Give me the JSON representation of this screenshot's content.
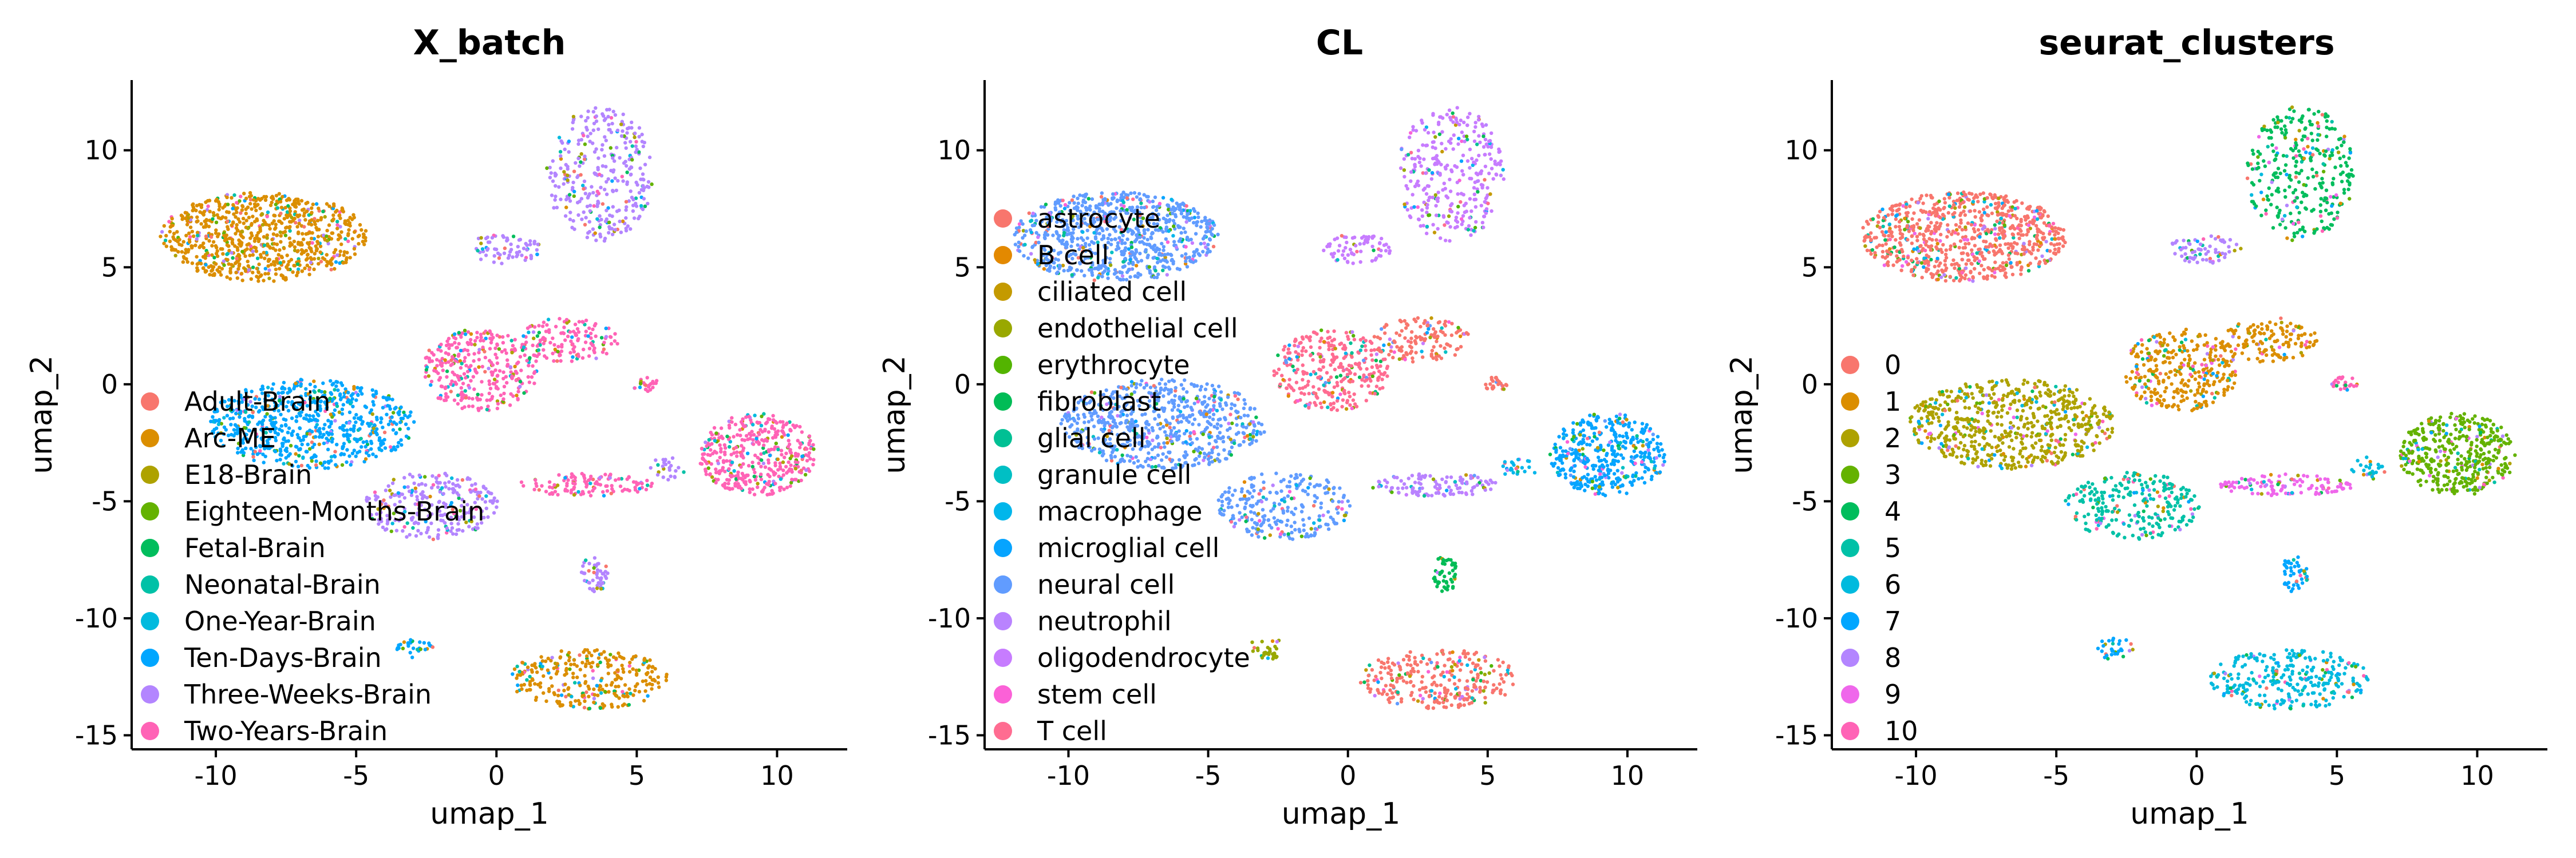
{
  "chart_data": [
    {
      "type": "scatter",
      "title": "X_batch",
      "xlabel": "umap_1",
      "ylabel": "umap_2",
      "xticks": [
        -10,
        -5,
        0,
        5,
        10
      ],
      "yticks": [
        -15,
        -10,
        -5,
        0,
        5,
        10
      ],
      "xlim": [
        -13,
        12.5
      ],
      "ylim": [
        -15.6,
        13
      ],
      "legend_position": "lower-left",
      "series": [
        {
          "name": "Adult-Brain",
          "color": "#F8766D"
        },
        {
          "name": "Arc-ME",
          "color": "#DB8E00"
        },
        {
          "name": "E18-Brain",
          "color": "#AEA200"
        },
        {
          "name": "Eighteen-Months-Brain",
          "color": "#64B200"
        },
        {
          "name": "Fetal-Brain",
          "color": "#00BD5C"
        },
        {
          "name": "Neonatal-Brain",
          "color": "#00C1A7"
        },
        {
          "name": "One-Year-Brain",
          "color": "#00BADE"
        },
        {
          "name": "Ten-Days-Brain",
          "color": "#00A6FF"
        },
        {
          "name": "Three-Weeks-Brain",
          "color": "#B385FF"
        },
        {
          "name": "Two-Years-Brain",
          "color": "#FF63B6"
        }
      ]
    },
    {
      "type": "scatter",
      "title": "CL",
      "xlabel": "umap_1",
      "ylabel": "umap_2",
      "xticks": [
        -10,
        -5,
        0,
        5,
        10
      ],
      "yticks": [
        -15,
        -10,
        -5,
        0,
        5,
        10
      ],
      "xlim": [
        -13,
        12.5
      ],
      "ylim": [
        -15.6,
        13
      ],
      "legend_position": "left",
      "series": [
        {
          "name": "astrocyte",
          "color": "#F8766D"
        },
        {
          "name": "B cell",
          "color": "#E38900"
        },
        {
          "name": "ciliated cell",
          "color": "#C49A00"
        },
        {
          "name": "endothelial cell",
          "color": "#99A800"
        },
        {
          "name": "erythrocyte",
          "color": "#53B400"
        },
        {
          "name": "fibroblast",
          "color": "#00BC56"
        },
        {
          "name": "glial cell",
          "color": "#00C094"
        },
        {
          "name": "granule cell",
          "color": "#00BFC4"
        },
        {
          "name": "macrophage",
          "color": "#00B6EB"
        },
        {
          "name": "microglial cell",
          "color": "#06A4FF"
        },
        {
          "name": "neural cell",
          "color": "#619CFF"
        },
        {
          "name": "neutrophil",
          "color": "#B983FF"
        },
        {
          "name": "oligodendrocyte",
          "color": "#C77CFF"
        },
        {
          "name": "stem cell",
          "color": "#FB61D7"
        },
        {
          "name": "T cell",
          "color": "#FF6C91"
        }
      ]
    },
    {
      "type": "scatter",
      "title": "seurat_clusters",
      "xlabel": "umap_1",
      "ylabel": "umap_2",
      "xticks": [
        -10,
        -5,
        0,
        5,
        10
      ],
      "yticks": [
        -15,
        -10,
        -5,
        0,
        5,
        10
      ],
      "xlim": [
        -13,
        12.5
      ],
      "ylim": [
        -15.6,
        13
      ],
      "legend_position": "left",
      "series": [
        {
          "name": "0",
          "color": "#F8766D"
        },
        {
          "name": "1",
          "color": "#DB8E00"
        },
        {
          "name": "2",
          "color": "#AEA200"
        },
        {
          "name": "3",
          "color": "#64B200"
        },
        {
          "name": "4",
          "color": "#00BD5C"
        },
        {
          "name": "5",
          "color": "#00C1A7"
        },
        {
          "name": "6",
          "color": "#00BADE"
        },
        {
          "name": "7",
          "color": "#00A6FF"
        },
        {
          "name": "8",
          "color": "#B385FF"
        },
        {
          "name": "9",
          "color": "#EF67EB"
        },
        {
          "name": "10",
          "color": "#FF63B6"
        }
      ]
    }
  ]
}
